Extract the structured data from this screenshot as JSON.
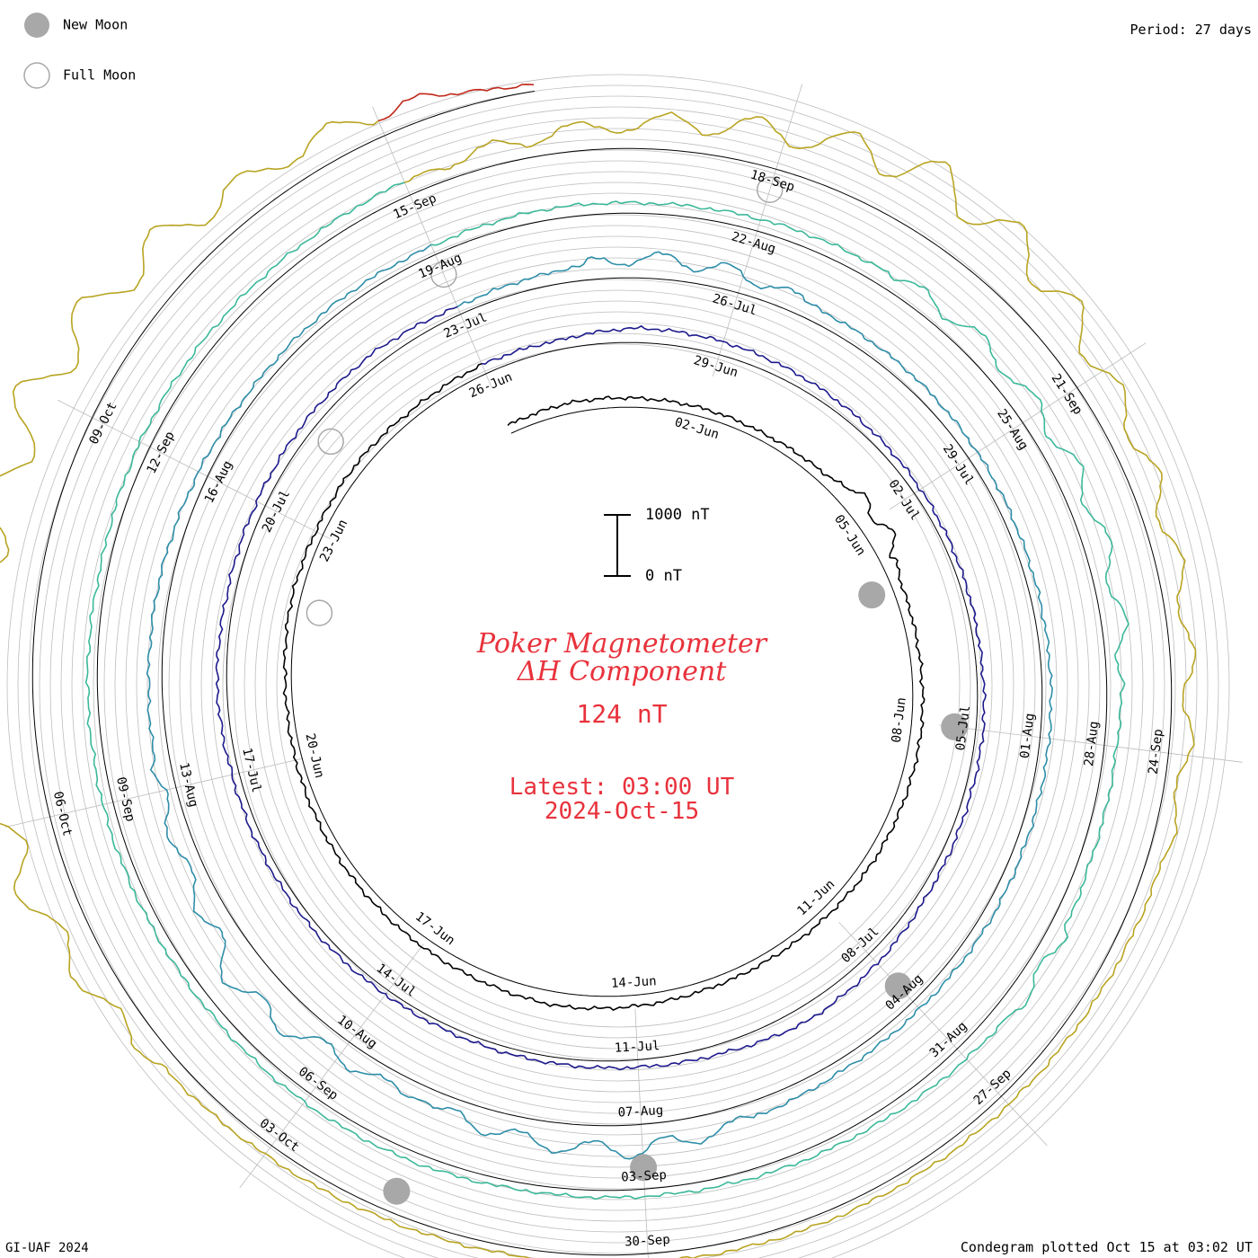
{
  "legend": {
    "new_moon_label": "New Moon",
    "full_moon_label": "Full Moon"
  },
  "header": {
    "period": "Period: 27 days"
  },
  "center": {
    "title_line1": "Poker Magnetometer",
    "title_line2": "ΔH Component",
    "current_value": "124 nT",
    "latest_time": "Latest: 03:00 UT",
    "latest_date": "2024-Oct-15",
    "scale_top": "1000 nT",
    "scale_bottom": "0 nT"
  },
  "footer": {
    "left": "GI-UAF 2024",
    "right": "Condegram plotted Oct 15 at 03:02 UT"
  },
  "colors": {
    "title": "#e8323c",
    "grid": "#bdbdbd",
    "moon_new": "#a8a8a8",
    "moon_full": "#a8a8a8"
  },
  "chart_data": {
    "type": "line",
    "title": "Poker Magnetometer ΔH Component",
    "ylabel": "nT",
    "scale_bar_nT": [
      0,
      1000
    ],
    "period_days": 27,
    "start_date": "2024-05-30",
    "end": "2024-10-15 03:00 UT",
    "daily_baseline_nT": [
      140,
      170,
      150,
      140,
      120,
      150,
      380,
      160,
      150,
      170,
      160,
      150,
      130,
      120,
      140,
      180,
      220,
      180,
      150,
      130,
      120,
      110,
      100,
      140,
      130,
      150,
      130,
      160,
      150,
      240,
      220,
      180,
      140,
      120,
      100,
      90,
      120,
      110,
      130,
      200,
      250,
      160,
      120,
      100,
      90,
      80,
      100,
      110,
      120,
      160,
      130,
      150,
      180,
      200,
      130,
      200,
      330,
      300,
      220,
      200,
      170,
      140,
      140,
      150,
      150,
      170,
      160,
      180,
      260,
      400,
      360,
      240,
      280,
      600,
      300,
      260,
      220,
      200,
      160,
      140,
      160,
      150,
      180,
      170,
      200,
      230,
      310,
      330,
      360,
      300,
      200,
      190,
      280,
      220,
      160,
      140,
      120,
      110,
      160,
      170,
      150,
      150,
      170,
      160,
      130,
      180,
      190,
      200,
      240,
      300,
      420,
      600,
      900,
      820,
      500,
      380,
      310,
      280,
      240,
      200,
      180,
      160,
      150,
      140,
      130,
      140,
      180,
      250,
      520,
      800,
      1100,
      900,
      1000,
      800,
      500,
      390,
      124
    ],
    "rings": [
      {
        "start": "2024-05-30",
        "color": "#000000"
      },
      {
        "start": "2024-06-26",
        "color": "#1e1a8c"
      },
      {
        "start": "2024-07-23",
        "color": "#2e8ea8"
      },
      {
        "start": "2024-08-19",
        "color": "#3cb89a"
      },
      {
        "start": "2024-09-15",
        "color": "#b8a422"
      },
      {
        "start": "2024-10-12",
        "color": "#c0281a"
      }
    ],
    "date_ticks": [
      [
        "02-Jun",
        "05-Jun",
        "08-Jun",
        "11-Jun",
        "14-Jun",
        "17-Jun",
        "20-Jun",
        "23-Jun",
        "26-Jun"
      ],
      [
        "29-Jun",
        "02-Jul",
        "05-Jul",
        "08-Jul",
        "11-Jul",
        "14-Jul",
        "17-Jul",
        "20-Jul",
        "23-Jul"
      ],
      [
        "26-Jul",
        "29-Jul",
        "01-Aug",
        "04-Aug",
        "07-Aug",
        "10-Aug",
        "13-Aug",
        "16-Aug",
        "19-Aug"
      ],
      [
        "22-Aug",
        "25-Aug",
        "28-Aug",
        "31-Aug",
        "03-Sep",
        "06-Sep",
        "09-Sep",
        "12-Sep",
        "15-Sep"
      ],
      [
        "18-Sep",
        "21-Sep",
        "24-Sep",
        "27-Sep",
        "30-Sep",
        "03-Oct",
        "06-Oct",
        "09-Oct"
      ]
    ],
    "new_moons": [
      "2024-06-06",
      "2024-07-05",
      "2024-08-04",
      "2024-09-03",
      "2024-10-02"
    ],
    "full_moons": [
      "2024-06-22",
      "2024-07-21",
      "2024-08-19",
      "2024-09-18"
    ]
  }
}
